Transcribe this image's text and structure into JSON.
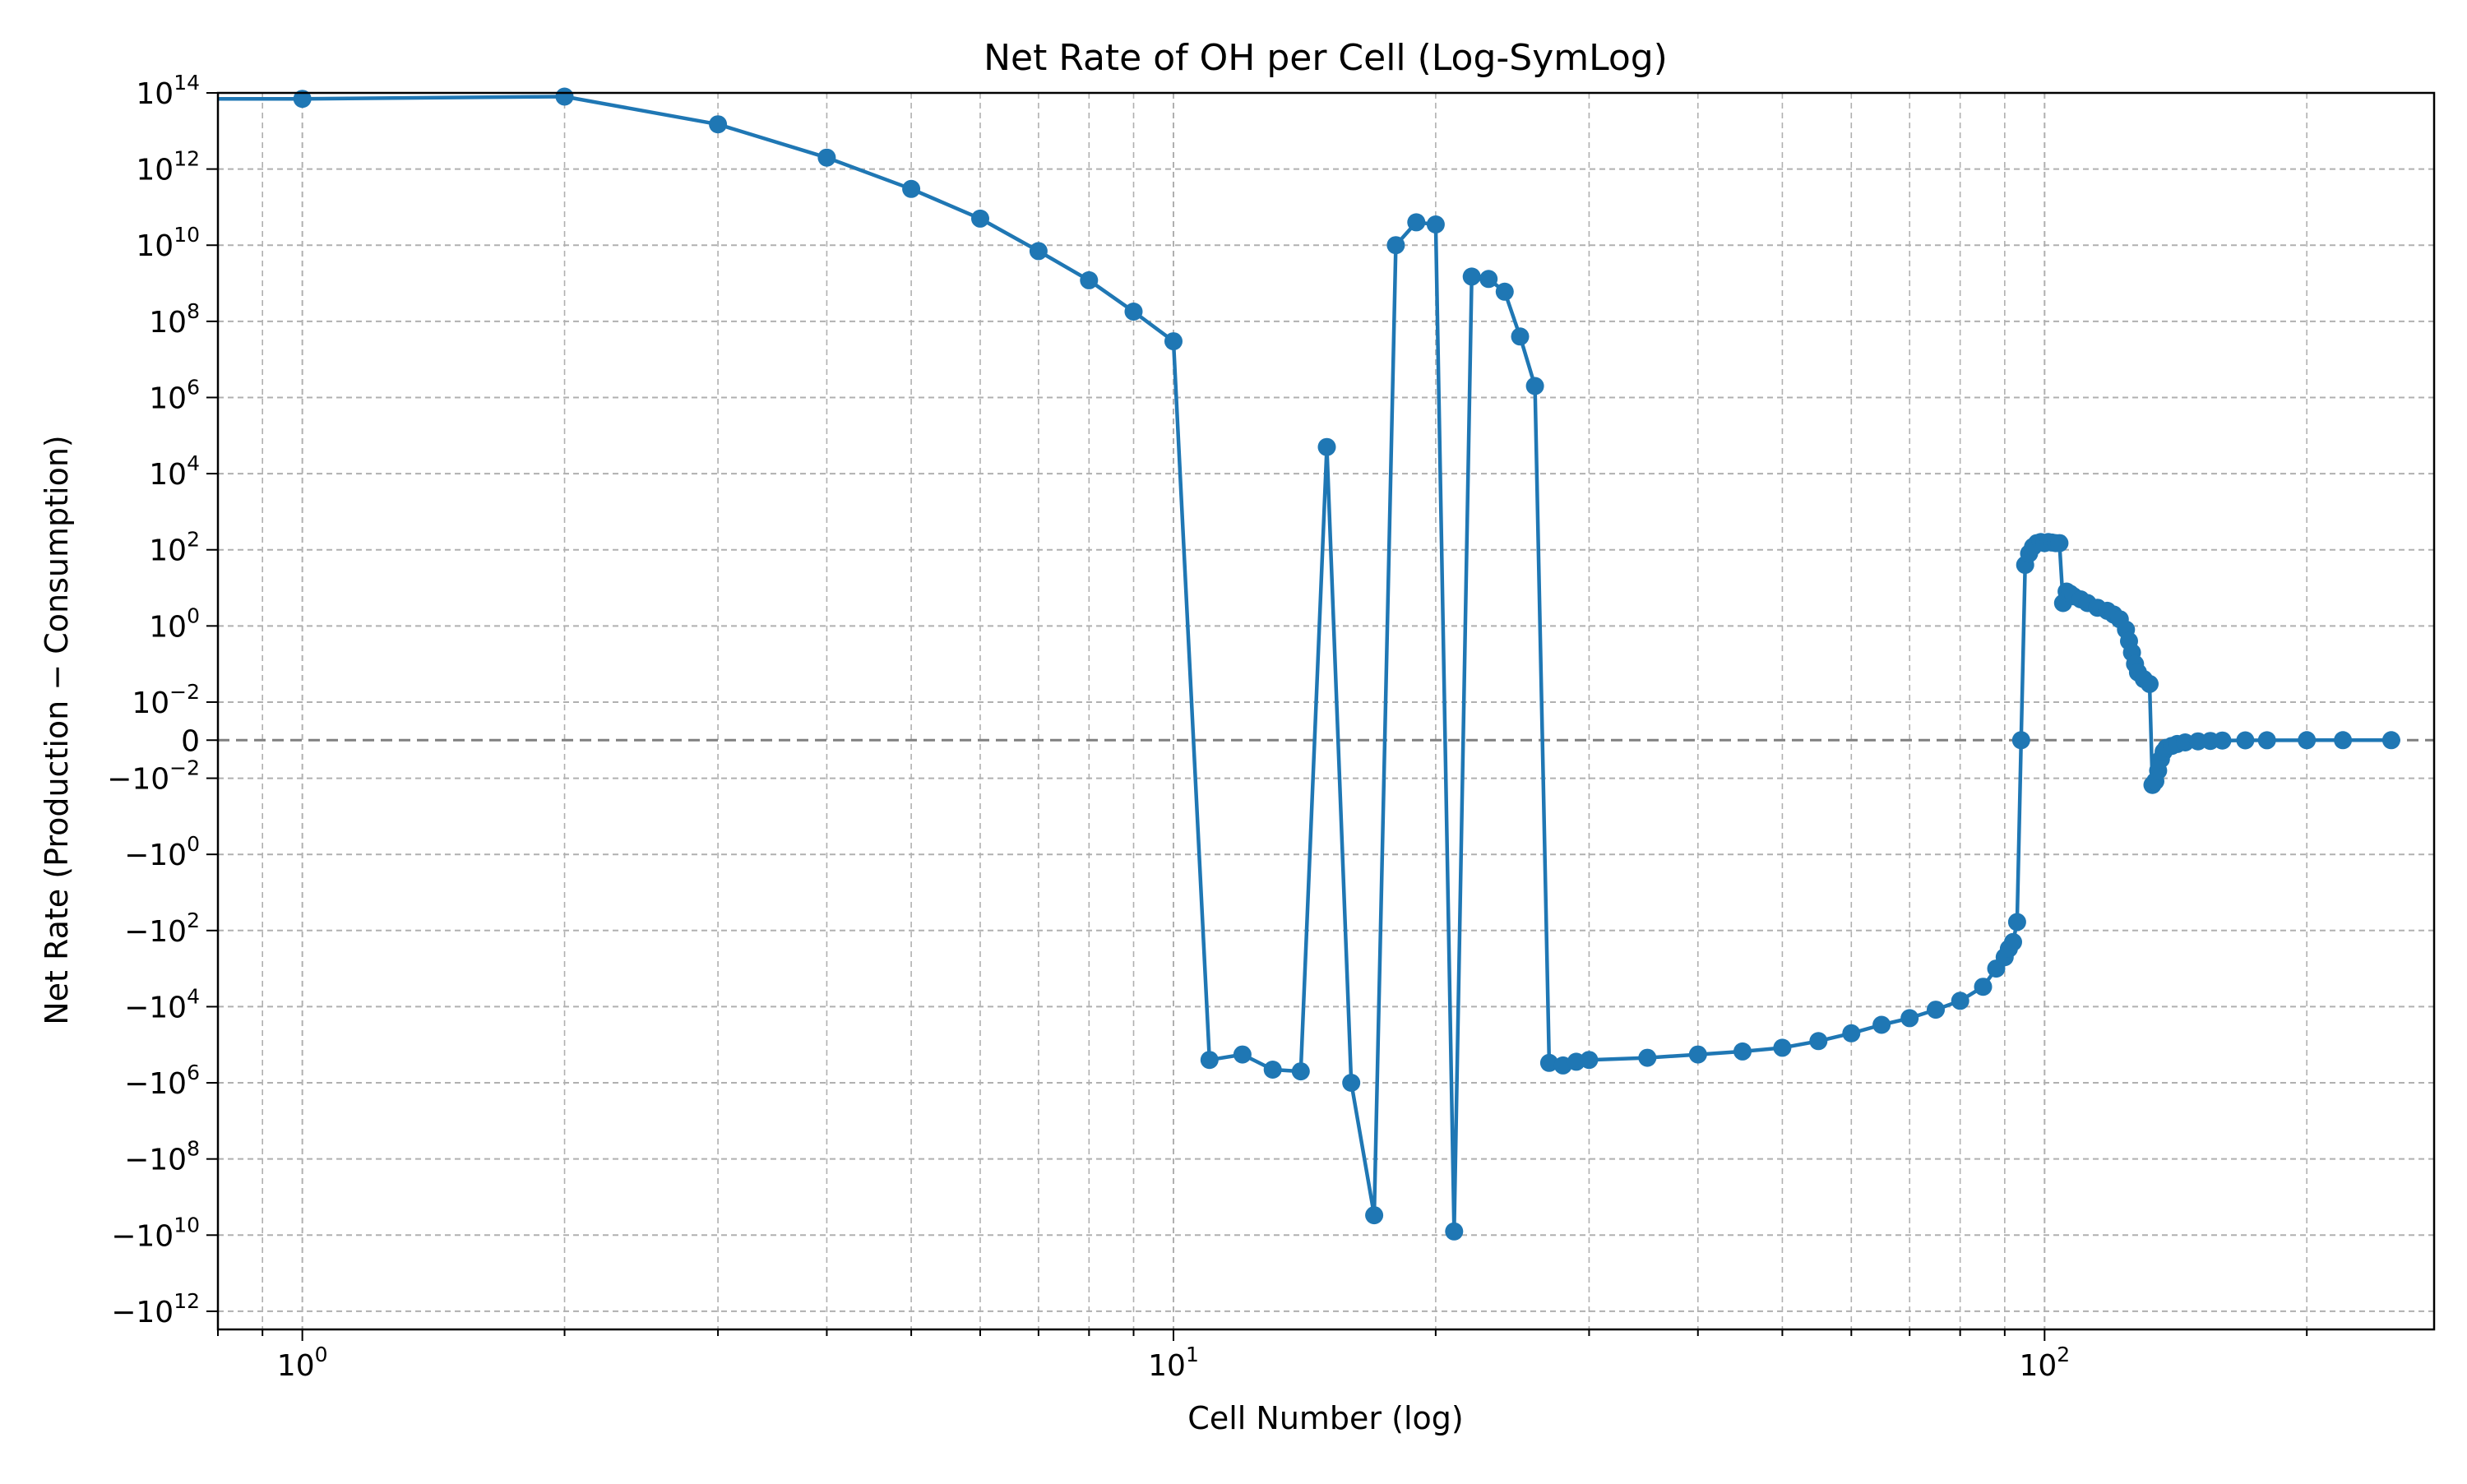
{
  "chart_data": {
    "type": "line",
    "title": "Net Rate of OH per Cell (Log-SymLog)",
    "xlabel": "Cell Number (log)",
    "ylabel": "Net Rate (Production − Consumption)",
    "x_scale": "log",
    "y_scale": "symlog",
    "symlog_linthresh": 0.01,
    "xlim": [
      0.8,
      280
    ],
    "ylim": [
      -3000000000000.0,
      100000000000000.0
    ],
    "grid": true,
    "legend": "none",
    "x_ticks": [
      {
        "value": 1,
        "base": "10",
        "exp": "0"
      },
      {
        "value": 10,
        "base": "10",
        "exp": "1"
      },
      {
        "value": 100,
        "base": "10",
        "exp": "2"
      }
    ],
    "y_ticks": [
      {
        "value": 100000000000000.0,
        "base": "10",
        "exp": "14"
      },
      {
        "value": 1000000000000.0,
        "base": "10",
        "exp": "12"
      },
      {
        "value": 10000000000.0,
        "base": "10",
        "exp": "10"
      },
      {
        "value": 100000000.0,
        "base": "10",
        "exp": "8"
      },
      {
        "value": 1000000.0,
        "base": "10",
        "exp": "6"
      },
      {
        "value": 10000.0,
        "base": "10",
        "exp": "4"
      },
      {
        "value": 100,
        "base": "10",
        "exp": "2"
      },
      {
        "value": 1,
        "base": "10",
        "exp": "0"
      },
      {
        "value": 0.01,
        "base": "10",
        "exp": "−2"
      },
      {
        "value": 0,
        "base": "0",
        "exp": ""
      },
      {
        "value": -0.01,
        "base": "−10",
        "exp": "−2"
      },
      {
        "value": -1,
        "base": "−10",
        "exp": "0"
      },
      {
        "value": -100,
        "base": "−10",
        "exp": "2"
      },
      {
        "value": -10000.0,
        "base": "−10",
        "exp": "4"
      },
      {
        "value": -1000000.0,
        "base": "−10",
        "exp": "6"
      },
      {
        "value": -100000000.0,
        "base": "−10",
        "exp": "8"
      },
      {
        "value": -10000000000.0,
        "base": "−10",
        "exp": "10"
      },
      {
        "value": -1000000000000.0,
        "base": "−10",
        "exp": "12"
      }
    ],
    "reference_line": {
      "y": 0,
      "style": "dashed",
      "color": "#808080"
    },
    "colors": {
      "series": "#1f77b4",
      "grid": "#b0b0b0"
    },
    "series": [
      {
        "x": [
          1,
          2,
          3,
          4,
          5,
          6,
          7,
          8,
          9,
          10,
          11,
          12,
          13,
          14,
          15,
          16,
          17,
          18,
          19,
          20,
          21,
          22,
          23,
          24,
          25,
          26,
          27,
          28,
          29,
          30,
          35,
          40,
          45,
          50,
          55,
          60,
          65,
          70,
          75,
          80,
          85,
          88,
          90,
          91,
          92,
          93,
          94,
          95,
          96,
          97,
          98,
          99,
          100,
          101,
          102,
          103,
          104,
          105,
          106,
          107,
          108,
          110,
          112,
          115,
          118,
          120,
          122,
          124,
          125,
          126,
          127,
          128,
          130,
          132,
          133,
          134,
          135,
          136,
          137,
          138,
          140,
          142,
          145,
          150,
          155,
          160,
          170,
          180,
          200,
          220,
          250
        ],
        "y": [
          70000000000000.0,
          80000000000000.0,
          15000000000000.0,
          2000000000000.0,
          300000000000.0,
          50000000000.0,
          7000000000.0,
          1200000000.0,
          180000000.0,
          30000000.0,
          -250000.0,
          -180000.0,
          -450000.0,
          -500000.0,
          50000.0,
          -1000000.0,
          -3000000000.0,
          10000000000.0,
          40000000000.0,
          35000000000.0,
          -8000000000.0,
          1500000000.0,
          1300000000.0,
          600000000.0,
          40000000.0,
          2000000.0,
          -300000.0,
          -350000.0,
          -280000.0,
          -250000.0,
          -220000.0,
          -180000.0,
          -150000.0,
          -120000.0,
          -80000.0,
          -50000.0,
          -30000.0,
          -20000.0,
          -12000.0,
          -7000.0,
          -3000.0,
          -1000.0,
          -500,
          -300,
          -200,
          -60,
          0,
          40,
          80,
          120,
          150,
          160,
          150,
          160,
          155,
          150,
          150,
          4,
          8,
          7,
          6,
          5,
          4,
          3,
          2.5,
          2,
          1.5,
          0.8,
          0.4,
          0.2,
          0.1,
          0.06,
          0.04,
          0.03,
          -0.015,
          -0.012,
          -0.008,
          -0.005,
          -0.003,
          -0.002,
          -0.0015,
          -0.001,
          -0.0006,
          -0.0003,
          -0.0002,
          -0.0001,
          -5e-05,
          -2e-05,
          0,
          0,
          0
        ]
      }
    ]
  }
}
